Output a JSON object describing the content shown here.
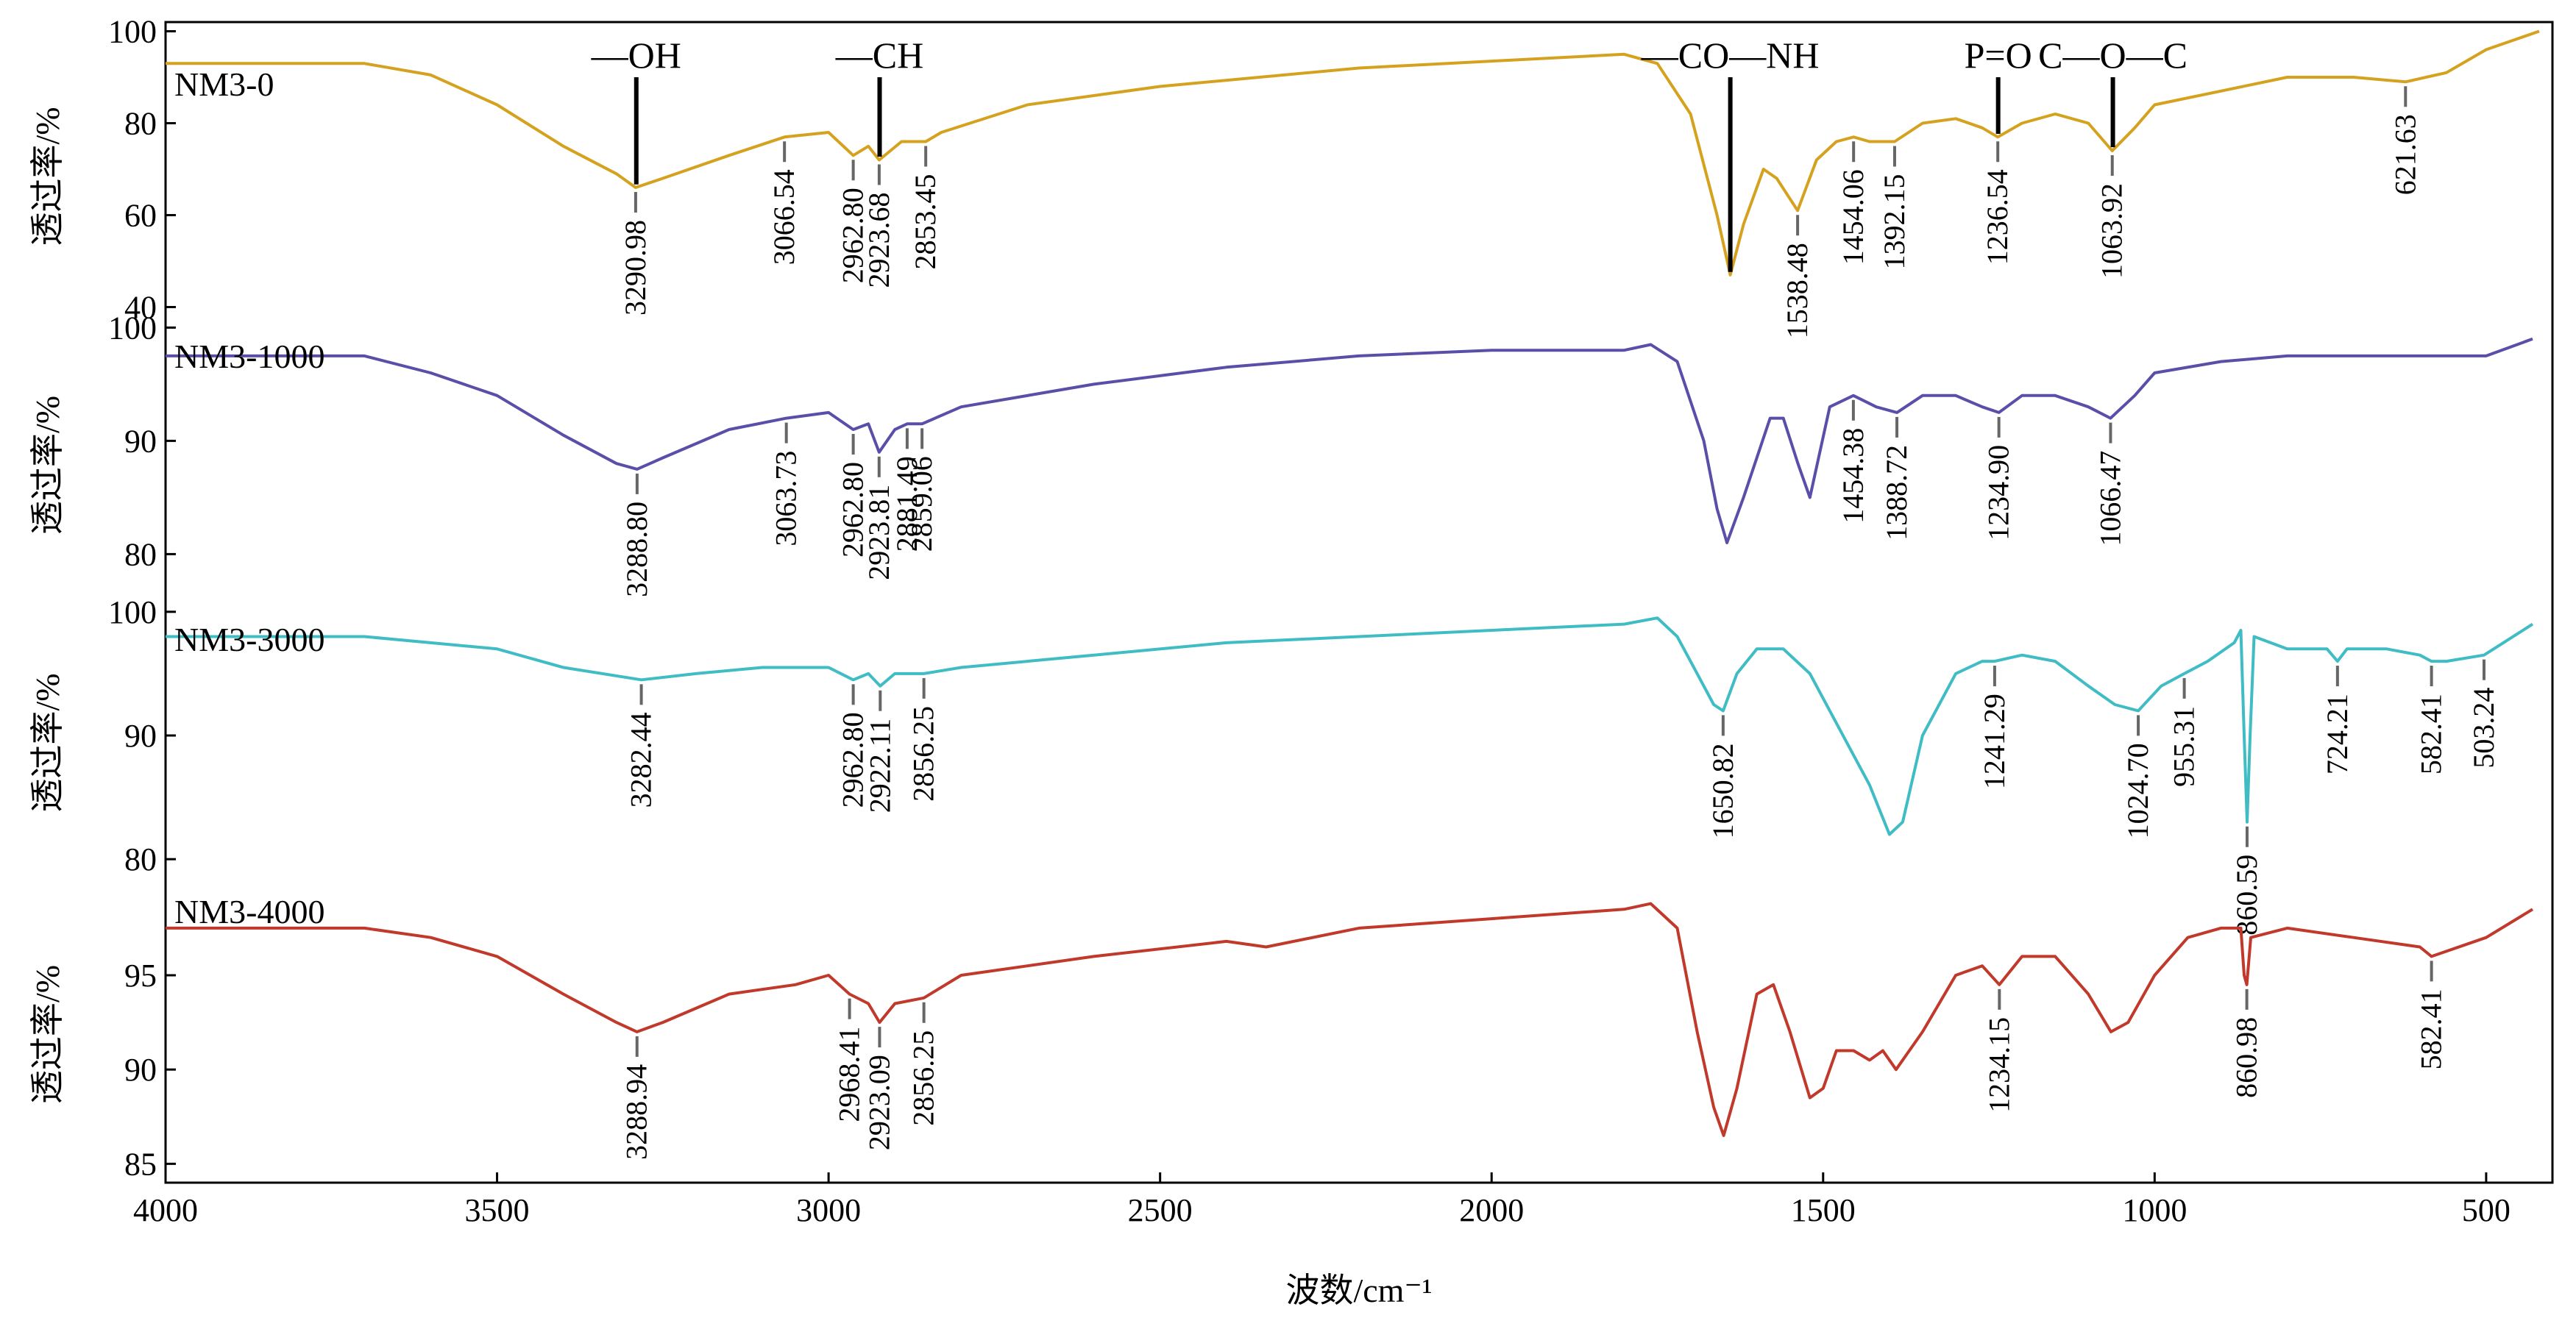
{
  "chart_data": {
    "type": "line",
    "title": "",
    "xlabel": "波数/cm⁻¹",
    "xlim": [
      4000,
      400
    ],
    "x_ticks": [
      4000,
      3500,
      3000,
      2500,
      2000,
      1500,
      1000,
      500
    ],
    "ylabel": "透过率/%",
    "panels": [
      {
        "name": "NM3-0",
        "color": "#d4a21f",
        "ylim": [
          38,
          102
        ],
        "y_ticks": [
          40,
          60,
          80,
          100
        ],
        "points": [
          [
            4000,
            93
          ],
          [
            3700,
            93
          ],
          [
            3600,
            90.5
          ],
          [
            3500,
            84
          ],
          [
            3400,
            75
          ],
          [
            3320,
            69
          ],
          [
            3290.98,
            66
          ],
          [
            3250,
            68
          ],
          [
            3150,
            73
          ],
          [
            3066.54,
            77
          ],
          [
            3000,
            78
          ],
          [
            2962.8,
            73
          ],
          [
            2940,
            75
          ],
          [
            2923.68,
            72
          ],
          [
            2890,
            76
          ],
          [
            2853.45,
            76
          ],
          [
            2830,
            78
          ],
          [
            2700,
            84
          ],
          [
            2500,
            88
          ],
          [
            2200,
            92
          ],
          [
            2000,
            93.5
          ],
          [
            1800,
            95
          ],
          [
            1750,
            93
          ],
          [
            1700,
            82
          ],
          [
            1660,
            60
          ],
          [
            1640,
            47
          ],
          [
            1620,
            58
          ],
          [
            1590,
            70
          ],
          [
            1570,
            68
          ],
          [
            1538.48,
            61
          ],
          [
            1510,
            72
          ],
          [
            1480,
            76
          ],
          [
            1454.06,
            77
          ],
          [
            1430,
            76
          ],
          [
            1392.15,
            76
          ],
          [
            1350,
            80
          ],
          [
            1300,
            81
          ],
          [
            1260,
            79
          ],
          [
            1236.54,
            77
          ],
          [
            1200,
            80
          ],
          [
            1150,
            82
          ],
          [
            1100,
            80
          ],
          [
            1063.92,
            74
          ],
          [
            1030,
            79
          ],
          [
            1000,
            84
          ],
          [
            900,
            87
          ],
          [
            800,
            90
          ],
          [
            700,
            90
          ],
          [
            621.63,
            89
          ],
          [
            560,
            91
          ],
          [
            500,
            96
          ],
          [
            420,
            100
          ]
        ],
        "peaks": [
          3290.98,
          3066.54,
          2962.8,
          2923.68,
          2853.45,
          1538.48,
          1454.06,
          1392.15,
          1236.54,
          1063.92,
          621.63
        ],
        "peak_labels": [
          "3290.98",
          "3066.54",
          "2962.80",
          "2923.68",
          "2853.45",
          "1538.48",
          "1454.06",
          "1392.15",
          "1236.54",
          "1063.92",
          "621.63"
        ],
        "group_labels": [
          {
            "text": "—OH",
            "x": 3290
          },
          {
            "text": "—CH",
            "x": 2923
          },
          {
            "text": "—CO—NH",
            "x": 1640
          },
          {
            "text": "P=O",
            "x": 1236
          },
          {
            "text": "C—O—C",
            "x": 1063
          }
        ]
      },
      {
        "name": "NM3-1000",
        "color": "#5a4fa8",
        "ylim": [
          76,
          101
        ],
        "y_ticks": [
          80,
          90,
          100
        ],
        "points": [
          [
            4000,
            97.5
          ],
          [
            3700,
            97.5
          ],
          [
            3600,
            96
          ],
          [
            3500,
            94
          ],
          [
            3400,
            90.5
          ],
          [
            3320,
            88
          ],
          [
            3288.8,
            87.5
          ],
          [
            3250,
            88.5
          ],
          [
            3150,
            91
          ],
          [
            3063.73,
            92
          ],
          [
            3000,
            92.5
          ],
          [
            2962.8,
            91
          ],
          [
            2940,
            91.5
          ],
          [
            2923.81,
            89
          ],
          [
            2900,
            91
          ],
          [
            2881.49,
            91.5
          ],
          [
            2859.06,
            91.5
          ],
          [
            2800,
            93
          ],
          [
            2600,
            95
          ],
          [
            2400,
            96.5
          ],
          [
            2200,
            97.5
          ],
          [
            2000,
            98
          ],
          [
            1800,
            98
          ],
          [
            1760,
            98.5
          ],
          [
            1720,
            97
          ],
          [
            1680,
            90
          ],
          [
            1660,
            84
          ],
          [
            1645,
            81
          ],
          [
            1620,
            85
          ],
          [
            1580,
            92
          ],
          [
            1560,
            92
          ],
          [
            1538,
            88
          ],
          [
            1520,
            85
          ],
          [
            1490,
            93
          ],
          [
            1454.38,
            94
          ],
          [
            1420,
            93
          ],
          [
            1388.72,
            92.5
          ],
          [
            1350,
            94
          ],
          [
            1300,
            94
          ],
          [
            1260,
            93
          ],
          [
            1234.9,
            92.5
          ],
          [
            1200,
            94
          ],
          [
            1150,
            94
          ],
          [
            1100,
            93
          ],
          [
            1066.47,
            92
          ],
          [
            1030,
            94
          ],
          [
            1000,
            96
          ],
          [
            900,
            97
          ],
          [
            800,
            97.5
          ],
          [
            600,
            97.5
          ],
          [
            500,
            97.5
          ],
          [
            430,
            99
          ]
        ],
        "peaks": [
          3288.8,
          3063.73,
          2962.8,
          2923.81,
          2881.49,
          2859.06,
          1454.38,
          1388.72,
          1234.9,
          1066.47
        ],
        "peak_labels": [
          "3288.80",
          "3063.73",
          "2962.80",
          "2923.81",
          "2881.49",
          "2859.06",
          "1454.38",
          "1388.72",
          "1234.90",
          "1066.47"
        ],
        "group_labels": []
      },
      {
        "name": "NM3-3000",
        "color": "#3fbcc4",
        "ylim": [
          79,
          101
        ],
        "y_ticks": [
          80,
          90,
          100
        ],
        "points": [
          [
            4000,
            98
          ],
          [
            3700,
            98
          ],
          [
            3500,
            97
          ],
          [
            3400,
            95.5
          ],
          [
            3282.44,
            94.5
          ],
          [
            3200,
            95
          ],
          [
            3100,
            95.5
          ],
          [
            3000,
            95.5
          ],
          [
            2962.8,
            94.5
          ],
          [
            2940,
            95
          ],
          [
            2922.11,
            94
          ],
          [
            2900,
            95
          ],
          [
            2856.25,
            95
          ],
          [
            2800,
            95.5
          ],
          [
            2600,
            96.5
          ],
          [
            2400,
            97.5
          ],
          [
            2200,
            98
          ],
          [
            2000,
            98.5
          ],
          [
            1800,
            99
          ],
          [
            1750,
            99.5
          ],
          [
            1720,
            98
          ],
          [
            1690,
            95
          ],
          [
            1665,
            92.5
          ],
          [
            1650.82,
            92
          ],
          [
            1630,
            95
          ],
          [
            1600,
            97
          ],
          [
            1560,
            97
          ],
          [
            1520,
            95
          ],
          [
            1480,
            91
          ],
          [
            1430,
            86
          ],
          [
            1400,
            82
          ],
          [
            1380,
            83
          ],
          [
            1350,
            90
          ],
          [
            1300,
            95
          ],
          [
            1260,
            96
          ],
          [
            1241.29,
            96
          ],
          [
            1200,
            96.5
          ],
          [
            1150,
            96
          ],
          [
            1100,
            94
          ],
          [
            1060,
            92.5
          ],
          [
            1024.7,
            92
          ],
          [
            990,
            94
          ],
          [
            955.31,
            95
          ],
          [
            920,
            96
          ],
          [
            880,
            97.5
          ],
          [
            870,
            98.5
          ],
          [
            865,
            90
          ],
          [
            860.59,
            83
          ],
          [
            856,
            90
          ],
          [
            850,
            98
          ],
          [
            800,
            97
          ],
          [
            740,
            97
          ],
          [
            724.21,
            96
          ],
          [
            710,
            97
          ],
          [
            650,
            97
          ],
          [
            600,
            96.5
          ],
          [
            582.41,
            96
          ],
          [
            560,
            96
          ],
          [
            503.24,
            96.5
          ],
          [
            430,
            99
          ]
        ],
        "peaks": [
          3282.44,
          2962.8,
          2922.11,
          2856.25,
          1650.82,
          1241.29,
          1024.7,
          955.31,
          860.59,
          724.21,
          582.41,
          503.24
        ],
        "peak_labels": [
          "3282.44",
          "2962.80",
          "2922.11",
          "2856.25",
          "1650.82",
          "1241.29",
          "1024.70",
          "955.31",
          "860.59",
          "724.21",
          "582.41",
          "503.24"
        ],
        "group_labels": []
      },
      {
        "name": "NM3-4000",
        "color": "#c0392b",
        "ylim": [
          84,
          100.5
        ],
        "y_ticks": [
          85,
          90,
          95
        ],
        "points": [
          [
            4000,
            97.5
          ],
          [
            3700,
            97.5
          ],
          [
            3600,
            97
          ],
          [
            3500,
            96
          ],
          [
            3400,
            94
          ],
          [
            3320,
            92.5
          ],
          [
            3288.94,
            92
          ],
          [
            3250,
            92.5
          ],
          [
            3150,
            94
          ],
          [
            3050,
            94.5
          ],
          [
            3000,
            95
          ],
          [
            2968.41,
            94
          ],
          [
            2940,
            93.5
          ],
          [
            2923.09,
            92.5
          ],
          [
            2900,
            93.5
          ],
          [
            2856.25,
            93.8
          ],
          [
            2800,
            95
          ],
          [
            2600,
            96
          ],
          [
            2400,
            96.8
          ],
          [
            2340,
            96.5
          ],
          [
            2200,
            97.5
          ],
          [
            2000,
            98
          ],
          [
            1800,
            98.5
          ],
          [
            1760,
            98.8
          ],
          [
            1720,
            97.5
          ],
          [
            1690,
            92
          ],
          [
            1665,
            88
          ],
          [
            1650,
            86.5
          ],
          [
            1630,
            89
          ],
          [
            1600,
            94
          ],
          [
            1575,
            94.5
          ],
          [
            1550,
            92
          ],
          [
            1520,
            88.5
          ],
          [
            1500,
            89
          ],
          [
            1480,
            91
          ],
          [
            1454,
            91
          ],
          [
            1430,
            90.5
          ],
          [
            1410,
            91
          ],
          [
            1390,
            90
          ],
          [
            1350,
            92
          ],
          [
            1300,
            95
          ],
          [
            1260,
            95.5
          ],
          [
            1234.15,
            94.5
          ],
          [
            1200,
            96
          ],
          [
            1150,
            96
          ],
          [
            1100,
            94
          ],
          [
            1066,
            92
          ],
          [
            1040,
            92.5
          ],
          [
            1000,
            95
          ],
          [
            950,
            97
          ],
          [
            900,
            97.5
          ],
          [
            870,
            97.5
          ],
          [
            865,
            95
          ],
          [
            860.98,
            94.5
          ],
          [
            855,
            97
          ],
          [
            800,
            97.5
          ],
          [
            700,
            97
          ],
          [
            600,
            96.5
          ],
          [
            582.41,
            96
          ],
          [
            500,
            97
          ],
          [
            430,
            98.5
          ]
        ],
        "peaks": [
          3288.94,
          2968.41,
          2923.09,
          2856.25,
          1234.15,
          860.98,
          582.41
        ],
        "peak_labels": [
          "3288.94",
          "2968.41",
          "2923.09",
          "2856.25",
          "1234.15",
          "860.98",
          "582.41"
        ],
        "group_labels": []
      }
    ]
  }
}
